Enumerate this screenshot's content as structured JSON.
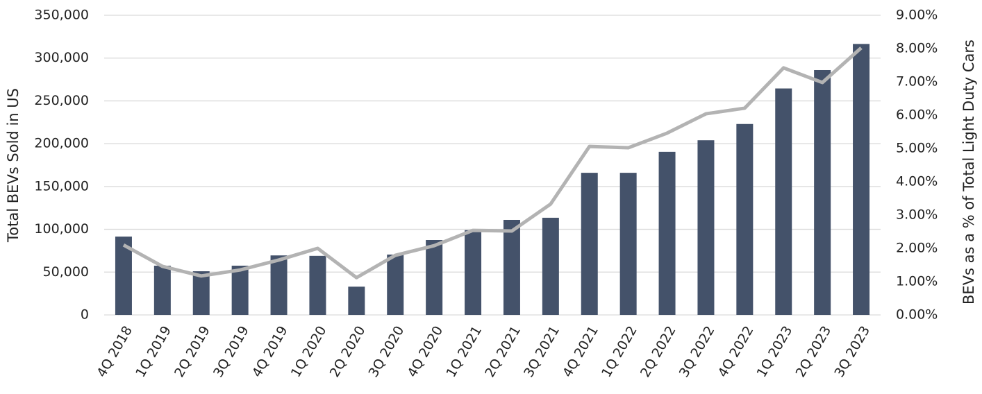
{
  "chart_data": {
    "type": "bar",
    "y_label": "Total BEVs Sold in US",
    "y2_label": "BEVs as a % of Total Light Duty Cars",
    "categories": [
      "4Q 2018",
      "1Q 2019",
      "2Q 2019",
      "3Q 2019",
      "4Q 2019",
      "1Q 2020",
      "2Q 2020",
      "3Q 2020",
      "4Q 2020",
      "1Q 2021",
      "2Q 2021",
      "3Q 2021",
      "4Q 2021",
      "1Q 2022",
      "2Q 2022",
      "3Q 2022",
      "4Q 2022",
      "1Q 2023",
      "2Q 2023",
      "3Q 2023"
    ],
    "series": [
      {
        "type": "bar",
        "color": "#44526a",
        "values": [
          91500,
          57500,
          51000,
          57500,
          69500,
          69000,
          33000,
          70500,
          87500,
          99000,
          111000,
          113500,
          166000,
          166000,
          190500,
          204000,
          223000,
          264500,
          286000,
          316500
        ]
      },
      {
        "type": "line",
        "axis": "y2",
        "color": "#b3b3b3",
        "values": [
          2.1,
          1.46,
          1.17,
          1.35,
          1.65,
          2.0,
          1.12,
          1.79,
          2.08,
          2.54,
          2.52,
          3.33,
          5.06,
          5.02,
          5.46,
          6.04,
          6.21,
          7.42,
          6.98,
          8.02
        ]
      }
    ],
    "ylim": [
      0,
      350000
    ],
    "yticks": [
      0,
      {
        "value": 50000,
        "label": "50,000"
      },
      {
        "value": 100000,
        "label": "100,000"
      },
      {
        "value": 150000,
        "label": "150,000"
      },
      {
        "value": 200000,
        "label": "200,000"
      },
      {
        "value": 250000,
        "label": "250,000"
      },
      {
        "value": 300000,
        "label": "300,000"
      },
      {
        "value": 350000,
        "label": "350,000"
      }
    ],
    "y2lim": [
      0,
      9
    ],
    "y2ticks": [
      {
        "value": 0,
        "label": "0.00%"
      },
      {
        "value": 1,
        "label": "1.00%"
      },
      {
        "value": 2,
        "label": "2.00%"
      },
      {
        "value": 3,
        "label": "3.00%"
      },
      {
        "value": 4,
        "label": "4.00%"
      },
      {
        "value": 5,
        "label": "5.00%"
      },
      {
        "value": 6,
        "label": "6.00%"
      },
      {
        "value": 7,
        "label": "7.00%"
      },
      {
        "value": 8,
        "label": "8.00%"
      },
      {
        "value": 9,
        "label": "9.00%"
      }
    ],
    "grid": true
  }
}
